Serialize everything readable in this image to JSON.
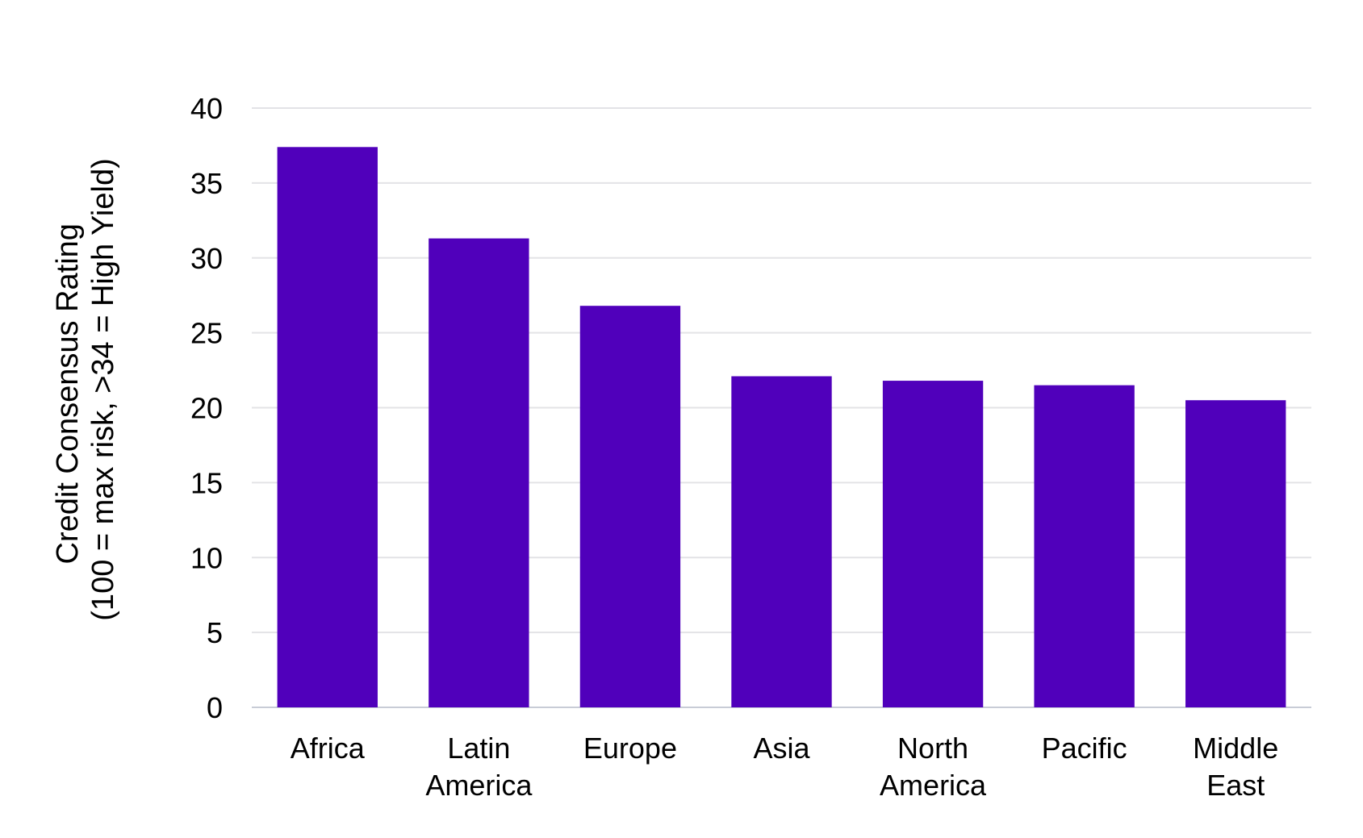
{
  "chart_data": {
    "type": "bar",
    "title": "",
    "xlabel": "",
    "ylabel_lines": [
      "Credit Consensus Rating",
      "(100 = max risk, >34 = High Yield)"
    ],
    "categories": [
      [
        "Africa"
      ],
      [
        "Latin",
        "America"
      ],
      [
        "Europe"
      ],
      [
        "Asia"
      ],
      [
        "North",
        "America"
      ],
      [
        "Pacific"
      ],
      [
        "Middle",
        "East"
      ]
    ],
    "values": [
      37.4,
      31.3,
      26.8,
      22.1,
      21.8,
      21.5,
      20.5
    ],
    "ylim": [
      0,
      40
    ],
    "yticks": [
      0,
      5,
      10,
      15,
      20,
      25,
      30,
      35,
      40
    ],
    "grid": true,
    "legend": "none",
    "bar_color": "#5000bb"
  }
}
